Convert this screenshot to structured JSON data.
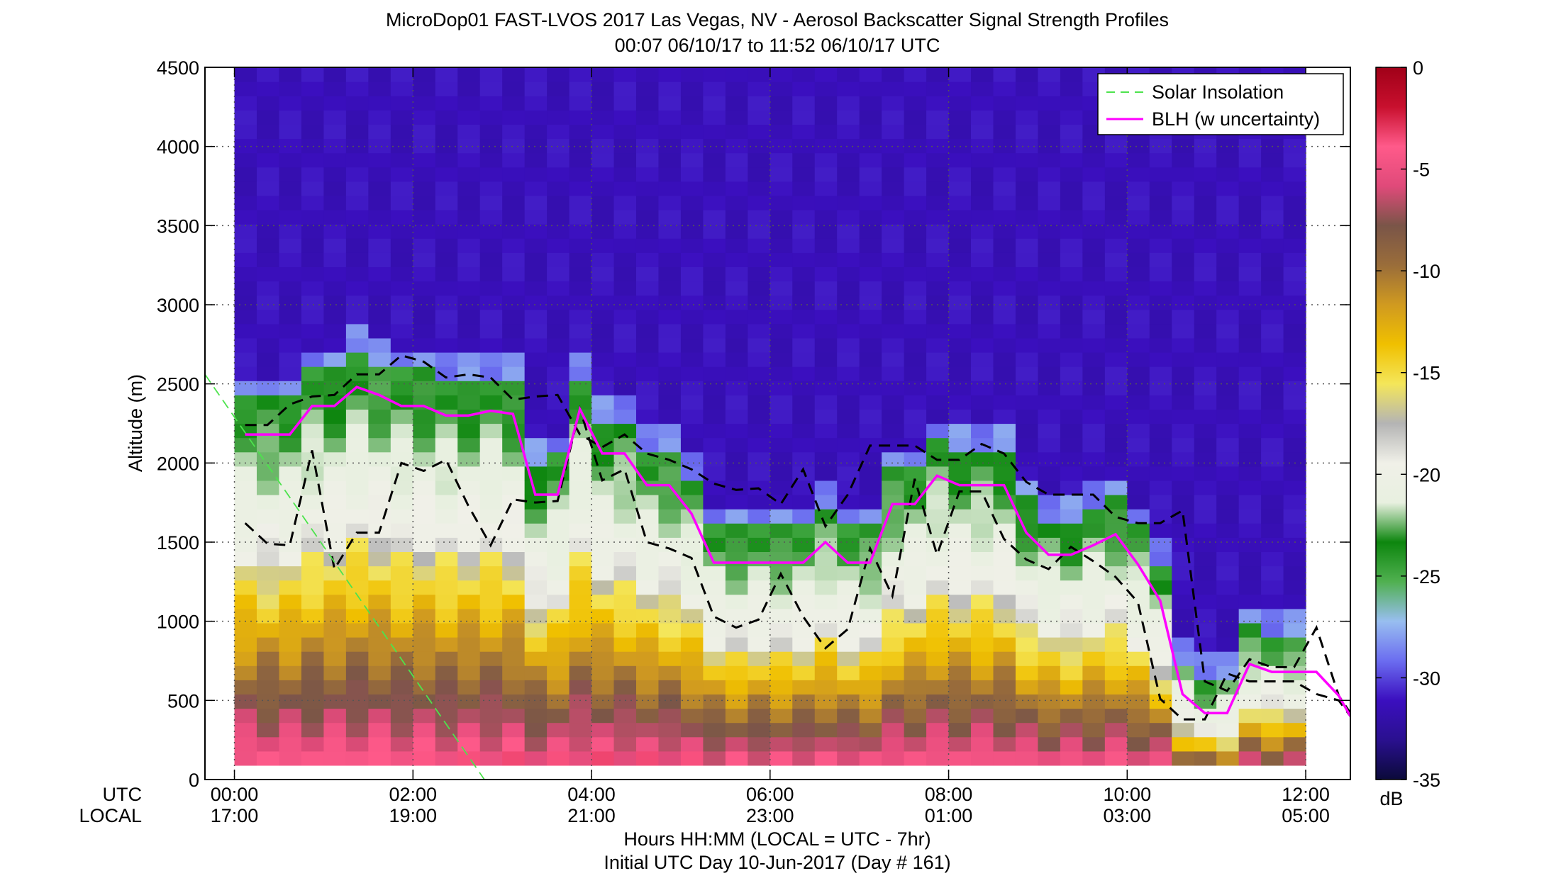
{
  "chart_data": {
    "type": "heatmap",
    "title": "MicroDop01 FAST-LVOS 2017 Las Vegas, NV - Aerosol Backscatter Signal Strength Profiles",
    "subtitle": "00:07 06/10/17 to 11:52 06/10/17  UTC",
    "ylabel": "Altitude (m)",
    "xlabel": "Hours HH:MM  (LOCAL = UTC - 7hr)",
    "footer": "Initial UTC Day 10-Jun-2017 (Day # 161)",
    "xrow_label_utc": "UTC",
    "xrow_label_local": "LOCAL",
    "xlim": [
      -0.33,
      12.5
    ],
    "ylim": [
      0,
      4500
    ],
    "grid": "dotted",
    "yticks": [
      0,
      500,
      1000,
      1500,
      2000,
      2500,
      3000,
      3500,
      4000,
      4500
    ],
    "ytick_labels": [
      "0",
      "500",
      "1000",
      "1500",
      "2000",
      "2500",
      "3000",
      "3500",
      "4000",
      "4500"
    ],
    "xticks": [
      0,
      2,
      4,
      6,
      8,
      10,
      12
    ],
    "xtick_labels_utc": [
      "00:00",
      "02:00",
      "04:00",
      "06:00",
      "08:00",
      "10:00",
      "12:00"
    ],
    "xtick_labels_local": [
      "17:00",
      "19:00",
      "21:00",
      "23:00",
      "01:00",
      "03:00",
      "05:00"
    ],
    "colorbar": {
      "label": "dB",
      "min": -35,
      "max": 0,
      "ticks": [
        0,
        -5,
        -10,
        -15,
        -20,
        -25,
        -30,
        -35
      ],
      "tick_labels": [
        "0",
        "-5",
        "-10",
        "-15",
        "-20",
        "-25",
        "-30",
        "-35"
      ],
      "colors": [
        "#0b0a3a",
        "#2a108f",
        "#3b0fbf",
        "#6b6df0",
        "#98bef0",
        "#50b050",
        "#0d860e",
        "#e8f0e0",
        "#f0f0e8",
        "#b4b4b4",
        "#f4e65a",
        "#f0c000",
        "#d09a20",
        "#9a6d3a",
        "#7a5548",
        "#e04a7a",
        "#ff5a8a",
        "#c8102e",
        "#a00018"
      ]
    },
    "legend": {
      "placement": "top-right",
      "entries": [
        {
          "label": "Solar Insolation",
          "style": "dashed",
          "color": "#4de34d"
        },
        {
          "label": "BLH (w uncertainty)",
          "style": "solid",
          "color": "#ff00ff"
        }
      ]
    },
    "series": [
      {
        "name": "BLH (w uncertainty)",
        "color": "#ff00ff",
        "x": [
          0.12,
          0.37,
          0.62,
          0.87,
          1.12,
          1.37,
          1.62,
          1.87,
          2.12,
          2.37,
          2.62,
          2.87,
          3.12,
          3.37,
          3.62,
          3.87,
          4.12,
          4.37,
          4.62,
          4.87,
          5.12,
          5.37,
          5.62,
          5.87,
          6.12,
          6.37,
          6.62,
          6.87,
          7.12,
          7.37,
          7.62,
          7.87,
          8.12,
          8.37,
          8.62,
          8.87,
          9.12,
          9.37,
          9.62,
          9.87,
          10.12,
          10.37,
          10.62,
          10.87,
          11.12,
          11.37,
          11.62,
          11.87,
          12.12,
          12.37,
          12.5
        ],
        "y": [
          2180,
          2180,
          2180,
          2360,
          2360,
          2480,
          2430,
          2360,
          2360,
          2300,
          2300,
          2330,
          2310,
          1800,
          1800,
          2340,
          2060,
          2060,
          1860,
          1860,
          1680,
          1370,
          1370,
          1370,
          1370,
          1370,
          1500,
          1370,
          1370,
          1740,
          1740,
          1920,
          1860,
          1860,
          1860,
          1560,
          1420,
          1420,
          1480,
          1550,
          1360,
          1130,
          540,
          420,
          420,
          730,
          680,
          680,
          680,
          530,
          400
        ]
      },
      {
        "name": "",
        "color": "#000000",
        "style": "dashed",
        "x": [
          0.12,
          0.37,
          0.62,
          0.87,
          1.12,
          1.37,
          1.62,
          1.87,
          2.12,
          2.37,
          2.62,
          2.87,
          3.12,
          3.37,
          3.62,
          3.87,
          4.12,
          4.37,
          4.62,
          4.87,
          5.12,
          5.37,
          5.62,
          5.87,
          6.12,
          6.37,
          6.62,
          6.87,
          7.12,
          7.37,
          7.62,
          7.87,
          8.12,
          8.37,
          8.62,
          8.87,
          9.12,
          9.37,
          9.62,
          9.87,
          10.12,
          10.37,
          10.62,
          10.87,
          11.12,
          11.37,
          11.62,
          11.87,
          12.12,
          12.37,
          12.5
        ],
        "y": [
          2240,
          2240,
          2370,
          2420,
          2430,
          2560,
          2560,
          2680,
          2640,
          2540,
          2560,
          2540,
          2400,
          2420,
          2430,
          2180,
          2100,
          2180,
          2060,
          2020,
          1960,
          1870,
          1830,
          1840,
          1740,
          1960,
          1600,
          1800,
          2110,
          2110,
          2110,
          2020,
          2020,
          2120,
          2060,
          1880,
          1800,
          1800,
          1800,
          1660,
          1620,
          1620,
          1700,
          620,
          560,
          760,
          710,
          710,
          960,
          530,
          420
        ]
      },
      {
        "name": "",
        "color": "#000000",
        "style": "dashed",
        "x": [
          0.12,
          0.37,
          0.62,
          0.87,
          1.12,
          1.37,
          1.62,
          1.87,
          2.12,
          2.37,
          2.62,
          2.87,
          3.12,
          3.37,
          3.62,
          3.87,
          4.12,
          4.37,
          4.62,
          4.87,
          5.12,
          5.37,
          5.62,
          5.87,
          6.12,
          6.37,
          6.62,
          6.87,
          7.12,
          7.37,
          7.62,
          7.87,
          8.12,
          8.37,
          8.62,
          8.87,
          9.12,
          9.37,
          9.62,
          9.87,
          10.12,
          10.37,
          10.62,
          10.87,
          11.12,
          11.37,
          11.62,
          11.87,
          12.12,
          12.37,
          12.5
        ],
        "y": [
          1620,
          1490,
          1480,
          2080,
          1330,
          1560,
          1560,
          2000,
          1950,
          2020,
          1730,
          1480,
          1770,
          1750,
          1760,
          2340,
          1890,
          1960,
          1500,
          1460,
          1400,
          1030,
          960,
          1010,
          1300,
          1030,
          830,
          950,
          1460,
          1160,
          1900,
          1420,
          1820,
          1820,
          1520,
          1390,
          1330,
          1470,
          1380,
          1280,
          1120,
          510,
          380,
          380,
          670,
          620,
          620,
          620,
          540,
          500,
          400
        ]
      },
      {
        "name": "Solar Insolation",
        "color": "#4de34d",
        "style": "dashed",
        "x": [
          -0.33,
          2.8
        ],
        "y": [
          2560,
          0
        ]
      }
    ]
  }
}
